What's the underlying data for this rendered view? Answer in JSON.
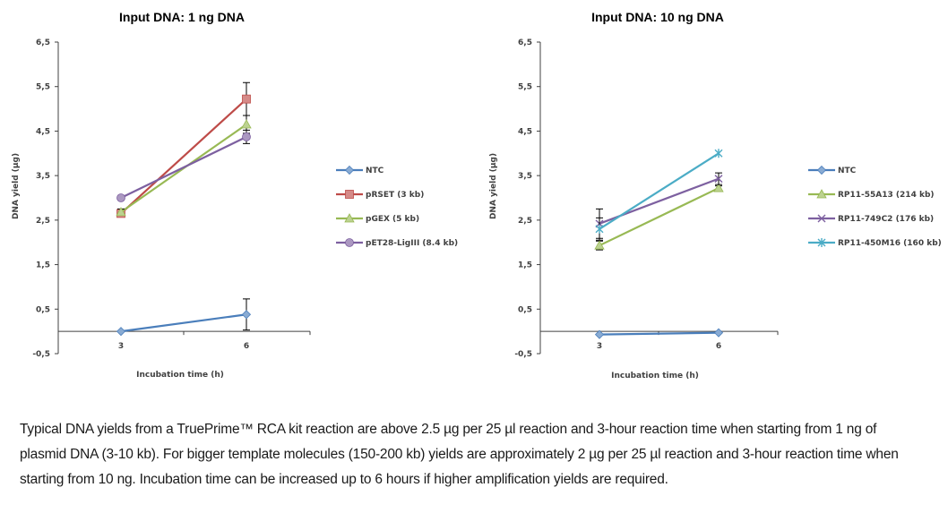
{
  "chart_data": [
    {
      "type": "line",
      "title": "Input DNA: 1 ng DNA",
      "xlabel": "Incubation time (h)",
      "ylabel": "DNA yield (µg)",
      "categories": [
        "3",
        "6"
      ],
      "ylim": [
        -0.5,
        6.5
      ],
      "yticks": [
        "6,5",
        "5,5",
        "4,5",
        "3,5",
        "2,5",
        "1,5",
        "0,5",
        "-0,5"
      ],
      "ytick_values": [
        6.5,
        5.5,
        4.5,
        3.5,
        2.5,
        1.5,
        0.5,
        -0.5
      ],
      "grid": false,
      "legend_position": "right",
      "series": [
        {
          "name": "NTC",
          "color": "#4a7ebb",
          "marker": "diamond",
          "values": [
            0.0,
            0.38
          ],
          "errors": [
            0.0,
            0.35
          ]
        },
        {
          "name": "pRSET (3 kb)",
          "color": "#be4b48",
          "marker": "square",
          "values": [
            2.65,
            5.22
          ],
          "errors": [
            0.08,
            0.37
          ]
        },
        {
          "name": "pGEX (5 kb)",
          "color": "#98b954",
          "marker": "triangle",
          "values": [
            2.68,
            4.65
          ],
          "errors": [
            0.07,
            0.2
          ]
        },
        {
          "name": "pET28-LigIII (8.4 kb)",
          "color": "#7d60a0",
          "marker": "circle",
          "values": [
            3.0,
            4.37
          ],
          "errors": [
            0.0,
            0.15
          ]
        }
      ]
    },
    {
      "type": "line",
      "title": "Input DNA: 10 ng DNA",
      "xlabel": "Incubation time (h)",
      "ylabel": "DNA yield (µg)",
      "categories": [
        "3",
        "6"
      ],
      "ylim": [
        -0.5,
        6.5
      ],
      "yticks": [
        "6,5",
        "5,5",
        "4,5",
        "3,5",
        "2,5",
        "1,5",
        "0,5",
        "-0,5"
      ],
      "ytick_values": [
        6.5,
        5.5,
        4.5,
        3.5,
        2.5,
        1.5,
        0.5,
        -0.5
      ],
      "grid": false,
      "legend_position": "right",
      "series": [
        {
          "name": "NTC",
          "color": "#4a7ebb",
          "marker": "diamond",
          "values": [
            -0.07,
            -0.03
          ],
          "errors": [
            0.0,
            0.0
          ]
        },
        {
          "name": "RP11-55A13 (214 kb)",
          "color": "#98b954",
          "marker": "triangle",
          "values": [
            1.93,
            3.22
          ],
          "errors": [
            0.1,
            0.05
          ]
        },
        {
          "name": "RP11-749C2 (176 kb)",
          "color": "#7d60a0",
          "marker": "x",
          "values": [
            2.42,
            3.43
          ],
          "errors": [
            0.33,
            0.13
          ]
        },
        {
          "name": "RP11-450M16 (160 kb)",
          "color": "#4bacc6",
          "marker": "star",
          "values": [
            2.3,
            4.0
          ],
          "errors": [
            0.25,
            0.0
          ]
        }
      ]
    }
  ],
  "caption": "Typical DNA yields from a TruePrime™ RCA kit reaction are above 2.5 µg per 25 µl reaction and 3-hour reaction time when starting from 1 ng of plasmid DNA (3-10 kb). For bigger template molecules (150-200 kb) yields are approximately 2 µg per 25 µl reaction and 3-hour reaction time when starting from 10 ng. Incubation time can be increased up to 6 hours if higher amplification yields are required."
}
